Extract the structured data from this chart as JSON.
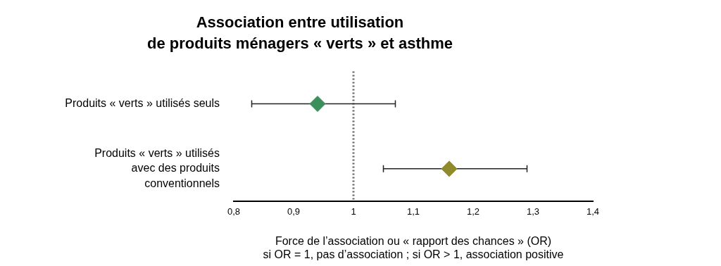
{
  "chart_data": {
    "type": "scatter",
    "orientation": "horizontal",
    "title": "Association entre utilisation\nde produits ménagers « verts » et asthme",
    "xlabel": "Force de l’association ou « rapport des chances » (OR)\nsi OR = 1, pas d’association ; si OR > 1, association positive",
    "categories": [
      "Produits « verts » utilisés seuls",
      "Produits « verts » utilisés avec des produits conventionnels"
    ],
    "values": [
      0.94,
      1.16
    ],
    "errors": [
      [
        0.83,
        1.07
      ],
      [
        1.05,
        1.29
      ]
    ],
    "colors": [
      "#3a8f5c",
      "#8f8a2a"
    ],
    "marker": "diamond",
    "xlim": [
      0.8,
      1.4
    ],
    "xticks": [
      {
        "value": 0.8,
        "label": "0,8"
      },
      {
        "value": 0.9,
        "label": "0,9"
      },
      1,
      {
        "value": 1.1,
        "label": "1,1"
      },
      {
        "value": 1.2,
        "label": "1,2"
      },
      {
        "value": 1.3,
        "label": "1,3"
      },
      {
        "value": 1.4,
        "label": "1,4"
      }
    ],
    "ref_lines": [
      {
        "axis": "x",
        "value": 1,
        "color": "#666666",
        "line_style": "dotted"
      }
    ],
    "grid": false,
    "legend": false
  }
}
